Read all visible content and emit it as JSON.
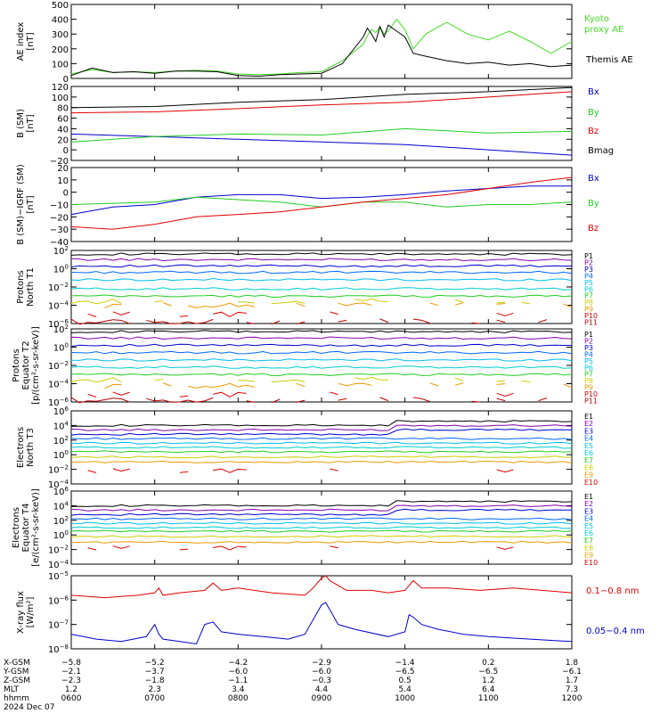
{
  "colors": {
    "black": "#000000",
    "red": "#e00000",
    "green": "#22cc22",
    "blue": "#0000cc",
    "bright_green": "#44ee44"
  },
  "chart_data": [
    {
      "type": "line",
      "panel": "ae",
      "ylabel": [
        "AE index",
        "[nT]"
      ],
      "ylim": [
        0,
        500
      ],
      "yticks": [
        0,
        100,
        200,
        300,
        400,
        500
      ],
      "log": false,
      "series": [
        {
          "name": "Kyoto proxy AE",
          "color": "#44dd22",
          "x": [
            0,
            0.25,
            0.5,
            0.75,
            1.0,
            1.25,
            1.5,
            1.75,
            2.0,
            2.25,
            2.5,
            2.75,
            3.0,
            3.25,
            3.5,
            3.55,
            3.6,
            3.65,
            3.7,
            3.75,
            3.8,
            3.9,
            4.0,
            4.1,
            4.25,
            4.5,
            4.75,
            5.0,
            5.25,
            5.5,
            5.75,
            6.0
          ],
          "values": [
            30,
            60,
            40,
            45,
            40,
            50,
            55,
            50,
            30,
            25,
            30,
            40,
            45,
            120,
            230,
            290,
            330,
            310,
            350,
            300,
            320,
            400,
            330,
            200,
            300,
            380,
            300,
            260,
            320,
            250,
            170,
            250
          ]
        },
        {
          "name": "Themis AE",
          "color": "#000000",
          "x": [
            0,
            0.25,
            0.5,
            0.75,
            1.0,
            1.25,
            1.5,
            1.75,
            2.0,
            2.25,
            2.5,
            2.75,
            3.0,
            3.25,
            3.5,
            3.55,
            3.6,
            3.65,
            3.7,
            3.75,
            3.8,
            3.9,
            4.0,
            4.1,
            4.25,
            4.5,
            4.75,
            5.0,
            5.25,
            5.5,
            5.75,
            6.0
          ],
          "values": [
            20,
            70,
            40,
            45,
            35,
            50,
            50,
            45,
            20,
            15,
            25,
            30,
            35,
            100,
            280,
            340,
            300,
            250,
            350,
            280,
            360,
            320,
            280,
            170,
            150,
            120,
            100,
            110,
            90,
            100,
            80,
            90
          ]
        }
      ]
    },
    {
      "type": "line",
      "panel": "b_sm",
      "ylabel": [
        "B (SM)",
        "[nT]"
      ],
      "ylim": [
        -20,
        120
      ],
      "yticks": [
        -20,
        0,
        20,
        40,
        60,
        80,
        100,
        120
      ],
      "log": false,
      "series": [
        {
          "name": "Bx",
          "color": "#0000cc",
          "x": [
            0,
            1,
            2,
            3,
            4,
            5,
            6
          ],
          "values": [
            30,
            25,
            20,
            15,
            10,
            0,
            -10
          ]
        },
        {
          "name": "By",
          "color": "#22cc22",
          "x": [
            0,
            1,
            2,
            3,
            4,
            5,
            6
          ],
          "values": [
            15,
            25,
            30,
            28,
            40,
            32,
            35
          ]
        },
        {
          "name": "Bz",
          "color": "#e00000",
          "x": [
            0,
            1,
            2,
            3,
            4,
            5,
            6
          ],
          "values": [
            70,
            72,
            78,
            85,
            90,
            100,
            110
          ]
        },
        {
          "name": "Bmag",
          "color": "#000000",
          "x": [
            0,
            1,
            2,
            3,
            4,
            5,
            6
          ],
          "values": [
            80,
            82,
            90,
            95,
            105,
            110,
            118
          ]
        }
      ]
    },
    {
      "type": "line",
      "panel": "b_igrf",
      "ylabel": [
        "B (SM)−IGRF (SM)",
        "[nT]"
      ],
      "ylim": [
        -40,
        20
      ],
      "yticks": [
        -40,
        -30,
        -20,
        -10,
        0,
        10,
        20
      ],
      "log": false,
      "series": [
        {
          "name": "Bx",
          "color": "#0000cc",
          "x": [
            0,
            0.5,
            1,
            1.5,
            2,
            2.5,
            3,
            3.5,
            4,
            4.5,
            5,
            5.5,
            6
          ],
          "values": [
            -18,
            -12,
            -10,
            -4,
            -2,
            -2,
            -5,
            -4,
            -2,
            1,
            3,
            5,
            5
          ]
        },
        {
          "name": "By",
          "color": "#22cc22",
          "x": [
            0,
            0.5,
            1,
            1.5,
            2,
            2.5,
            3,
            3.5,
            4,
            4.5,
            5,
            5.5,
            6
          ],
          "values": [
            -10,
            -9,
            -8,
            -4,
            -6,
            -8,
            -12,
            -8,
            -8,
            -12,
            -10,
            -10,
            -8
          ]
        },
        {
          "name": "Bz",
          "color": "#e00000",
          "x": [
            0,
            0.5,
            1,
            1.5,
            2,
            2.5,
            3,
            3.5,
            4,
            4.5,
            5,
            5.5,
            6
          ],
          "values": [
            -28,
            -30,
            -26,
            -20,
            -18,
            -16,
            -12,
            -8,
            -5,
            -2,
            3,
            8,
            12
          ]
        }
      ]
    },
    {
      "type": "line",
      "panel": "protons_north",
      "ylabel": [
        "Protons",
        "North T1"
      ],
      "ylim": [
        -6,
        2
      ],
      "yticks_exp": [
        -6,
        -4,
        -2,
        0,
        2
      ],
      "log": true,
      "channels": [
        "P1",
        "P2",
        "P3",
        "P4",
        "P5",
        "P6",
        "P7",
        "P8",
        "P9",
        "P10",
        "P11"
      ],
      "channel_colors": [
        "#000000",
        "#8800aa",
        "#0000cc",
        "#0066ff",
        "#00bbee",
        "#00cccc",
        "#22cc22",
        "#cccc00",
        "#ee9900",
        "#e00000",
        "#bb0000"
      ],
      "levels": [
        1.6,
        1.0,
        0.3,
        -0.4,
        -1.2,
        -2.2,
        -3.0,
        -3.6,
        -4.0,
        -5.0,
        -5.8
      ],
      "gap_from": 7
    },
    {
      "type": "line",
      "panel": "protons_equator",
      "ylabel": [
        "Protons",
        "Equator T2",
        "[p/(cm²-s-sr-keV)]"
      ],
      "ylim": [
        -6,
        2
      ],
      "yticks_exp": [
        -6,
        -4,
        -2,
        0,
        2
      ],
      "log": true,
      "channels": [
        "P1",
        "P2",
        "P3",
        "P4",
        "P5",
        "P6",
        "P7",
        "P8",
        "P9",
        "P10",
        "P11"
      ],
      "channel_colors": [
        "#000000",
        "#8800aa",
        "#0000cc",
        "#0066ff",
        "#00bbee",
        "#00cccc",
        "#22cc22",
        "#cccc00",
        "#ee9900",
        "#e00000",
        "#bb0000"
      ],
      "levels": [
        1.7,
        1.0,
        0.2,
        -0.6,
        -1.4,
        -2.2,
        -3.0,
        -3.6,
        -4.2,
        -5.2,
        -5.8
      ],
      "gap_from": 7
    },
    {
      "type": "line",
      "panel": "electrons_north",
      "ylabel": [
        "Electrons",
        "North T3"
      ],
      "ylim": [
        -4,
        6
      ],
      "yticks_exp": [
        -4,
        -2,
        0,
        2,
        4,
        6
      ],
      "log": true,
      "channels": [
        "E1",
        "E2",
        "E3",
        "E4",
        "E5",
        "E6",
        "E7",
        "E8",
        "E9",
        "E10"
      ],
      "channel_colors": [
        "#000000",
        "#8800aa",
        "#0000cc",
        "#0066ff",
        "#00bbee",
        "#00cccc",
        "#22cc22",
        "#cccc00",
        "#ee9900",
        "#e00000"
      ],
      "levels": [
        4.0,
        3.4,
        2.8,
        2.2,
        1.6,
        1.0,
        0.4,
        -0.3,
        -1.0,
        -2.2
      ],
      "gap_from": 9
    },
    {
      "type": "line",
      "panel": "electrons_equator",
      "ylabel": [
        "Electrons",
        "Equator T4",
        "[e/(cm²-s-sr-keV)]"
      ],
      "ylim": [
        -4,
        6
      ],
      "yticks_exp": [
        -4,
        -2,
        0,
        2,
        4,
        6
      ],
      "log": true,
      "channels": [
        "E1",
        "E2",
        "E3",
        "E4",
        "E5",
        "E6",
        "E7",
        "E8",
        "E9",
        "E10"
      ],
      "channel_colors": [
        "#000000",
        "#8800aa",
        "#0000cc",
        "#0066ff",
        "#00bbee",
        "#00cccc",
        "#22cc22",
        "#cccc00",
        "#ee9900",
        "#e00000"
      ],
      "levels": [
        4.0,
        3.4,
        2.8,
        2.2,
        1.6,
        1.0,
        0.5,
        -0.2,
        -1.0,
        -1.8
      ],
      "gap_from": 9
    },
    {
      "type": "line",
      "panel": "xray",
      "ylabel": [
        "X-ray flux",
        "[W/m²]"
      ],
      "ylim": [
        -8,
        -5
      ],
      "yticks_exp": [
        -8,
        -7,
        -6,
        -5
      ],
      "log": true,
      "series": [
        {
          "name": "0.1−0.8 nm",
          "color": "#e00000",
          "x": [
            0,
            0.4,
            0.8,
            1.0,
            1.05,
            1.1,
            1.3,
            1.6,
            1.7,
            1.8,
            2.0,
            2.4,
            2.8,
            2.9,
            3.0,
            3.05,
            3.1,
            3.3,
            3.6,
            3.8,
            4.0,
            4.1,
            4.2,
            4.5,
            4.9,
            5.3,
            6.0
          ],
          "values": [
            -5.8,
            -5.9,
            -5.8,
            -5.7,
            -5.5,
            -5.8,
            -5.7,
            -5.6,
            -5.3,
            -5.6,
            -5.5,
            -5.7,
            -5.8,
            -5.5,
            -5.1,
            -5.0,
            -5.2,
            -5.6,
            -5.6,
            -5.7,
            -5.6,
            -5.2,
            -5.5,
            -5.5,
            -5.6,
            -5.5,
            -5.7
          ]
        },
        {
          "name": "0.05−0.4 nm",
          "color": "#0000cc",
          "x": [
            0,
            0.3,
            0.6,
            0.9,
            1.0,
            1.05,
            1.1,
            1.3,
            1.5,
            1.6,
            1.7,
            1.8,
            2.0,
            2.3,
            2.6,
            2.8,
            2.9,
            3.0,
            3.05,
            3.1,
            3.2,
            3.4,
            3.8,
            4.0,
            4.05,
            4.1,
            4.2,
            4.4,
            4.7,
            5.0,
            5.5,
            6.0
          ],
          "values": [
            -7.4,
            -7.6,
            -7.7,
            -7.5,
            -7.0,
            -7.4,
            -7.6,
            -7.7,
            -7.8,
            -7.0,
            -6.9,
            -7.3,
            -7.4,
            -7.5,
            -7.6,
            -7.4,
            -6.8,
            -6.2,
            -6.1,
            -6.4,
            -7.0,
            -7.2,
            -7.5,
            -7.3,
            -6.6,
            -6.7,
            -7.0,
            -7.2,
            -7.4,
            -7.5,
            -7.6,
            -7.7
          ]
        }
      ]
    }
  ],
  "legends": {
    "ae": [
      {
        "text": "Kyoto",
        "color": "#44dd22"
      },
      {
        "text": "proxy AE",
        "color": "#44dd22"
      },
      {
        "text": "Themis AE",
        "color": "#000000"
      }
    ],
    "b_sm": [
      {
        "text": "Bx",
        "color": "#0000cc"
      },
      {
        "text": "By",
        "color": "#22cc22"
      },
      {
        "text": "Bz",
        "color": "#e00000"
      },
      {
        "text": "Bmag",
        "color": "#000000"
      }
    ],
    "b_igrf": [
      {
        "text": "Bx",
        "color": "#0000cc"
      },
      {
        "text": "By",
        "color": "#22cc22"
      },
      {
        "text": "Bz",
        "color": "#e00000"
      }
    ],
    "xray": [
      {
        "text": "0.1−0.8 nm",
        "color": "#e00000"
      },
      {
        "text": "0.05−0.4 nm",
        "color": "#0000cc"
      }
    ]
  },
  "ephemeris": {
    "rows": [
      {
        "label": "X-GSM",
        "values": [
          "−5.8",
          "−5.2",
          "−4.2",
          "−2.9",
          "−1.4",
          "0.2",
          "1.8"
        ]
      },
      {
        "label": "Y-GSM",
        "values": [
          "−2.1",
          "−3.7",
          "−6.0",
          "−6.0",
          "−6.5",
          "−6.5",
          "−6.1"
        ]
      },
      {
        "label": "Z-GSM",
        "values": [
          "−2.3",
          "−1.8",
          "−1.1",
          "−0.3",
          "0.5",
          "1.2",
          "1.7"
        ]
      },
      {
        "label": "MLT",
        "values": [
          "1.2",
          "2.3",
          "3.4",
          "4.4",
          "5.4",
          "6.4",
          "7.3"
        ]
      },
      {
        "label": "hhmm",
        "values": [
          "0600",
          "0700",
          "0800",
          "0900",
          "1000",
          "1100",
          "1200"
        ]
      }
    ],
    "date": "2024 Dec 07"
  }
}
